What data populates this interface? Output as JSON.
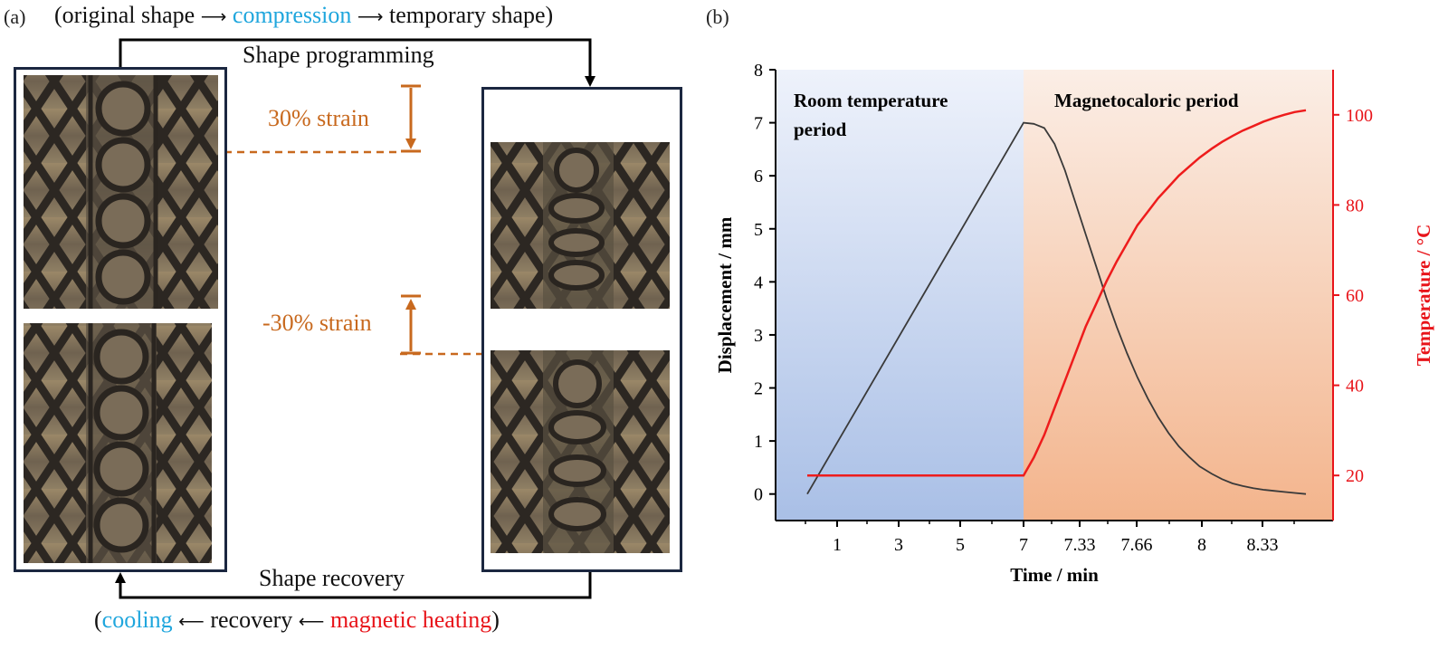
{
  "panel_a": {
    "label": "(a)",
    "top_caption": {
      "open": "(original shape",
      "compression": "compression",
      "temporary": "temporary shape)"
    },
    "programming_label": "Shape programming",
    "strain_top": "30% strain",
    "strain_bottom": "-30% strain",
    "recovery_label": "Shape recovery",
    "bottom_caption": {
      "open": "(",
      "cooling": "cooling",
      "recovery": "recovery",
      "heating": "magnetic heating",
      "close": ")"
    },
    "colors": {
      "cyan": "#1fa6dd",
      "red": "#e8141a",
      "orange": "#c8691e",
      "frame": "#1b2740"
    }
  },
  "panel_b": {
    "label": "(b)"
  },
  "chart_data": {
    "type": "line",
    "xlabel": "Time / min",
    "ylabel": "Displacement / mm",
    "y2label": "Temperature / °C",
    "x_tick_labels": [
      "1",
      "3",
      "5",
      "7",
      "7.33",
      "7.66",
      "8",
      "8.33"
    ],
    "ylim": [
      -0.5,
      8
    ],
    "y_ticks": [
      0,
      1,
      2,
      3,
      4,
      5,
      6,
      7,
      8
    ],
    "y2lim": [
      10,
      110
    ],
    "y2_ticks": [
      20,
      40,
      60,
      80,
      100
    ],
    "regions": [
      {
        "label": "Room temperature period",
        "start": 0,
        "end": 7,
        "color": "#a9bfe6"
      },
      {
        "label": "Magnetocaloric period",
        "start": 7,
        "end": 8.33,
        "color": "#f3b48c"
      }
    ],
    "region_label_rt_1": "Room temperature",
    "region_label_rt_2": "period",
    "region_label_mc": "Magnetocaloric period",
    "series": [
      {
        "axis": "left",
        "color": "#3a3a3a",
        "x": [
          0,
          7,
          7.055,
          7.11,
          7.165,
          7.22,
          7.275,
          7.33,
          7.385,
          7.44,
          7.495,
          7.55,
          7.605,
          7.66,
          7.715,
          7.77,
          7.825,
          7.88,
          7.935,
          8.0,
          8.055,
          8.11,
          8.165,
          8.22,
          8.275,
          8.33,
          8.385,
          8.44,
          8.5
        ],
        "y": [
          0,
          7.0,
          6.98,
          6.9,
          6.6,
          6.1,
          5.5,
          4.9,
          4.3,
          3.7,
          3.15,
          2.65,
          2.2,
          1.8,
          1.45,
          1.15,
          0.9,
          0.7,
          0.52,
          0.38,
          0.28,
          0.2,
          0.15,
          0.11,
          0.08,
          0.06,
          0.04,
          0.02,
          0.0
        ]
      },
      {
        "axis": "right",
        "color": "#ee1c1c",
        "x": [
          0,
          7,
          7.055,
          7.11,
          7.165,
          7.22,
          7.275,
          7.33,
          7.385,
          7.44,
          7.495,
          7.55,
          7.605,
          7.66,
          7.715,
          7.77,
          7.825,
          7.88,
          7.935,
          8.0,
          8.055,
          8.11,
          8.165,
          8.22,
          8.275,
          8.33,
          8.385,
          8.44,
          8.5
        ],
        "y": [
          20,
          20,
          24,
          29,
          35,
          41,
          47,
          53,
          58,
          63,
          67.5,
          71.5,
          75.5,
          78.5,
          81.5,
          84,
          86.5,
          88.5,
          90.5,
          92.5,
          94,
          95.3,
          96.5,
          97.5,
          98.5,
          99.3,
          100,
          100.6,
          101
        ]
      }
    ]
  }
}
